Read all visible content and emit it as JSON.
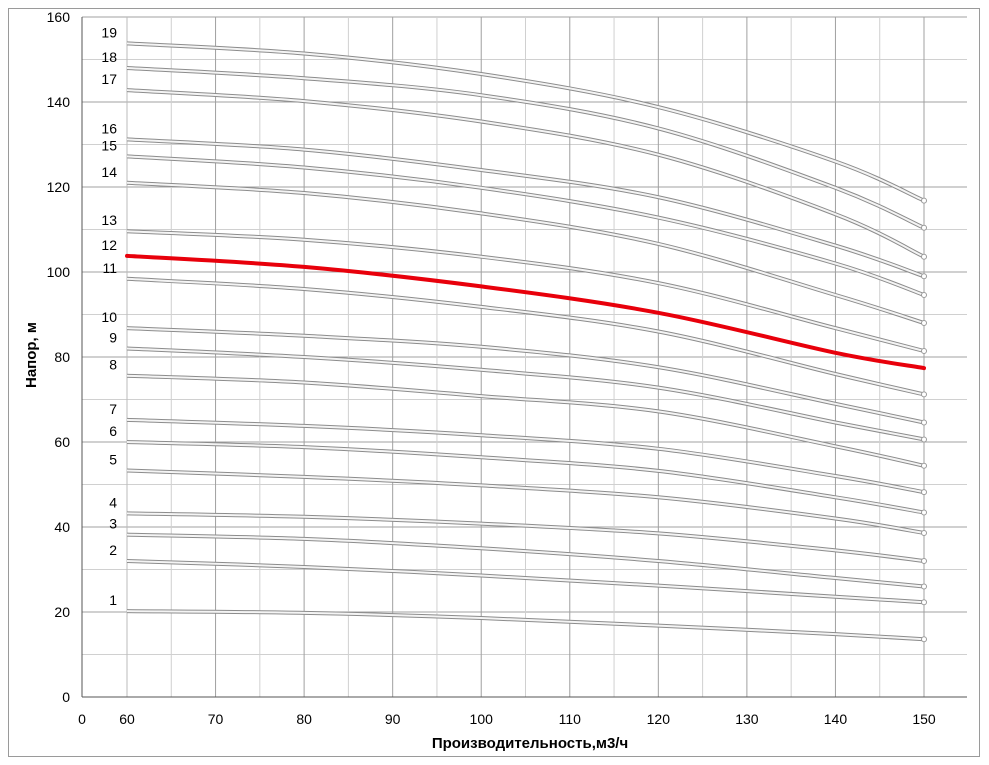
{
  "chart_data": {
    "type": "line",
    "xlabel": "Производительность,м3/ч",
    "ylabel": "Напор, м",
    "xlim": [
      0,
      150
    ],
    "ylim": [
      0,
      160
    ],
    "x_axis_break": "0 to 60 compressed",
    "x_tick_labels": [
      "0",
      "60",
      "70",
      "80",
      "90",
      "100",
      "110",
      "120",
      "130",
      "140",
      "150"
    ],
    "y_tick_labels": [
      "0",
      "20",
      "40",
      "60",
      "80",
      "100",
      "120",
      "140",
      "160"
    ],
    "grid": true,
    "highlight_color": "#e8000b",
    "curve_color": "#b8b8b8",
    "x": [
      60,
      80,
      100,
      120,
      140,
      150
    ],
    "series": [
      {
        "name": "1",
        "values": [
          20.2,
          19.8,
          18.6,
          16.8,
          14.8,
          13.6
        ]
      },
      {
        "name": "2",
        "values": [
          32.0,
          30.6,
          28.6,
          26.2,
          23.6,
          22.3
        ]
      },
      {
        "name": "3",
        "values": [
          38.2,
          37.2,
          35.0,
          32.0,
          28.0,
          26.0
        ]
      },
      {
        "name": "4",
        "values": [
          43.2,
          42.4,
          40.8,
          38.5,
          34.5,
          32.0
        ]
      },
      {
        "name": "5",
        "values": [
          53.3,
          51.8,
          49.8,
          47.0,
          42.0,
          38.6
        ]
      },
      {
        "name": "6",
        "values": [
          60.0,
          58.8,
          56.4,
          53.2,
          47.0,
          43.4
        ]
      },
      {
        "name": "7",
        "values": [
          65.2,
          63.8,
          61.6,
          58.4,
          52.0,
          48.2
        ]
      },
      {
        "name": "8",
        "values": [
          75.6,
          74.0,
          70.8,
          67.2,
          59.0,
          54.4
        ]
      },
      {
        "name": "9",
        "values": [
          82.0,
          80.0,
          77.0,
          72.8,
          64.6,
          60.6
        ]
      },
      {
        "name": "10",
        "values": [
          86.8,
          85.0,
          82.4,
          77.6,
          69.0,
          64.6
        ]
      },
      {
        "name": "11",
        "values": [
          98.4,
          96.0,
          91.8,
          86.0,
          76.0,
          71.2
        ]
      },
      {
        "name": "12",
        "values": [
          103.8,
          101.2,
          96.6,
          90.4,
          81.0,
          77.4
        ],
        "highlight": true
      },
      {
        "name": "13",
        "values": [
          109.6,
          107.6,
          103.6,
          97.4,
          86.8,
          81.4
        ]
      },
      {
        "name": "14",
        "values": [
          121.0,
          118.6,
          113.8,
          106.6,
          94.6,
          88.0
        ]
      },
      {
        "name": "15",
        "values": [
          127.2,
          124.6,
          119.8,
          112.8,
          102.0,
          94.6
        ]
      },
      {
        "name": "16",
        "values": [
          131.2,
          128.8,
          124.0,
          117.6,
          106.2,
          99.0
        ]
      },
      {
        "name": "17",
        "values": [
          142.8,
          140.2,
          135.4,
          127.6,
          113.6,
          103.6
        ]
      },
      {
        "name": "18",
        "values": [
          148.0,
          145.6,
          141.6,
          133.8,
          119.8,
          110.4
        ]
      },
      {
        "name": "19",
        "values": [
          153.8,
          151.4,
          146.6,
          138.8,
          126.0,
          116.8
        ]
      }
    ]
  }
}
